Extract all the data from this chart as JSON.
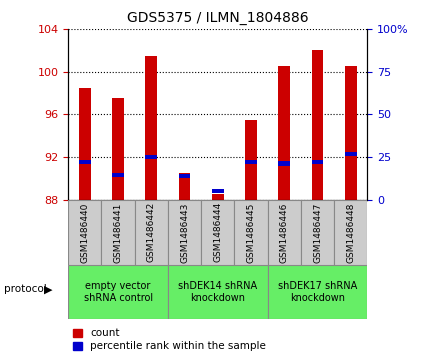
{
  "title": "GDS5375 / ILMN_1804886",
  "samples": [
    "GSM1486440",
    "GSM1486441",
    "GSM1486442",
    "GSM1486443",
    "GSM1486444",
    "GSM1486445",
    "GSM1486446",
    "GSM1486447",
    "GSM1486448"
  ],
  "count_values": [
    98.5,
    97.5,
    101.5,
    90.5,
    88.5,
    95.5,
    100.5,
    102.0,
    100.5
  ],
  "percentile_values_left": [
    91.5,
    90.3,
    92.0,
    90.2,
    88.8,
    91.5,
    91.4,
    91.5,
    92.3
  ],
  "ylim_left": [
    88,
    104
  ],
  "ylim_right": [
    0,
    100
  ],
  "yticks_left": [
    88,
    92,
    96,
    100,
    104
  ],
  "yticks_right": [
    0,
    25,
    50,
    75,
    100
  ],
  "bar_color": "#cc0000",
  "percentile_color": "#0000cc",
  "bar_bottom": 88,
  "protocol_groups": [
    {
      "label": "empty vector\nshRNA control",
      "start": 0,
      "end": 3
    },
    {
      "label": "shDEK14 shRNA\nknockdown",
      "start": 3,
      "end": 6
    },
    {
      "label": "shDEK17 shRNA\nknockdown",
      "start": 6,
      "end": 9
    }
  ],
  "legend_count_label": "count",
  "legend_percentile_label": "percentile rank within the sample",
  "protocol_label": "protocol",
  "background_color": "#ffffff",
  "plot_bg_color": "#ffffff",
  "ticklabel_color_left": "#cc0000",
  "ticklabel_color_right": "#0000cc",
  "sample_box_color": "#cccccc",
  "protocol_box_color": "#66ee66"
}
